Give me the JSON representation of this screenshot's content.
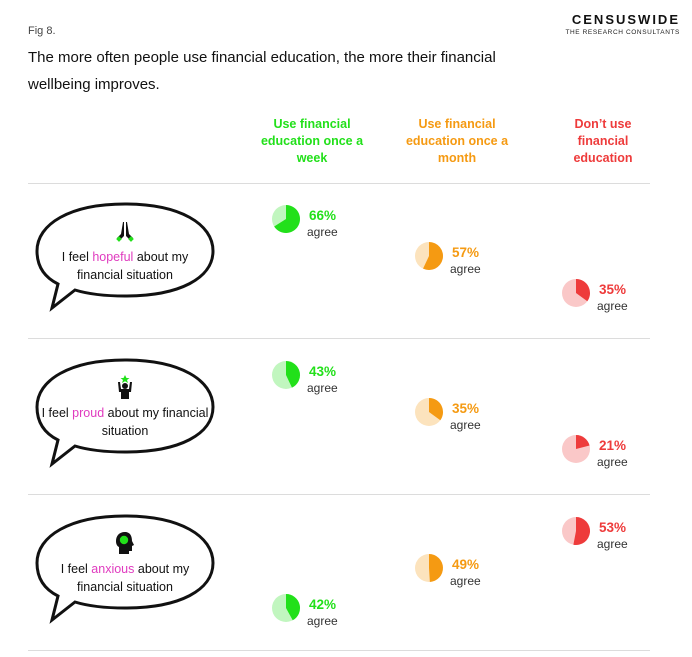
{
  "figure": {
    "label": "Fig 8.",
    "title": "The more often people use financial education, the more their financial wellbeing improves."
  },
  "brand": {
    "name": "CENSUSWIDE",
    "tagline": "THE RESEARCH CONSULTANTS"
  },
  "columns": [
    {
      "label": "Use financial education once a week",
      "color": "#22e01a"
    },
    {
      "label": "Use financial education once a month",
      "color": "#f59a12"
    },
    {
      "label": "Don’t use financial education",
      "color": "#ee3b3b"
    }
  ],
  "rows": [
    {
      "pre": "I feel ",
      "highlight": "hopeful",
      "post": " about my financial situation",
      "icon": "praying-hands-icon"
    },
    {
      "pre": "I feel ",
      "highlight": "proud",
      "post": " about my financial situation",
      "icon": "person-with-star-icon"
    },
    {
      "pre": "I feel ",
      "highlight": "anxious",
      "post": " about my financial situation",
      "icon": "head-with-brain-icon"
    }
  ],
  "agree_label": "agree",
  "colors": {
    "highlight": "#e03bbf"
  },
  "chart_data": {
    "type": "pie",
    "categories": [
      "I feel hopeful about my financial situation",
      "I feel proud about my financial situation",
      "I feel anxious about my financial situation"
    ],
    "series": [
      {
        "name": "Use financial education once a week",
        "values": [
          66,
          43,
          42
        ],
        "labels": [
          "66%",
          "43%",
          "42%"
        ]
      },
      {
        "name": "Use financial education once a month",
        "values": [
          57,
          35,
          49
        ],
        "labels": [
          "57%",
          "35%",
          "49%"
        ]
      },
      {
        "name": "Don’t use financial education",
        "values": [
          35,
          21,
          53
        ],
        "labels": [
          "35%",
          "21%",
          "53%"
        ]
      }
    ]
  }
}
